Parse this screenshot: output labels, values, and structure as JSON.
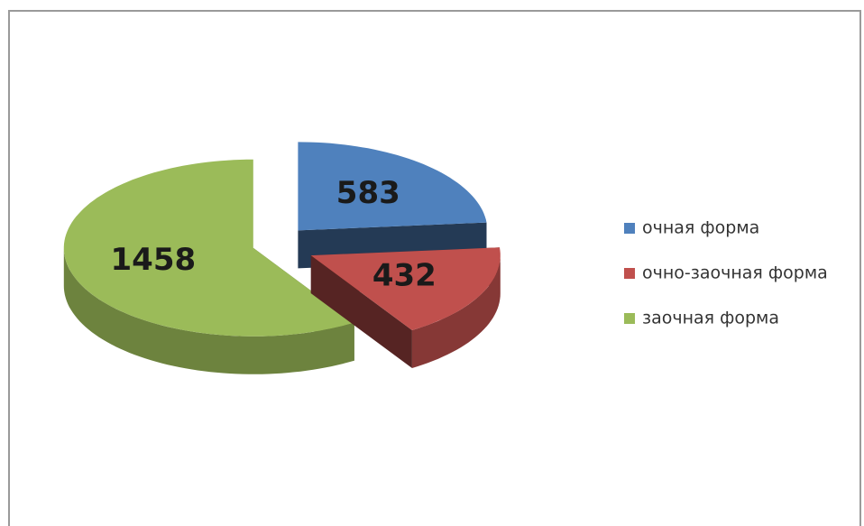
{
  "chart_data": {
    "type": "pie3d",
    "categories": [
      "очная форма",
      "очно-заочная форма",
      "заочная форма"
    ],
    "values": [
      583,
      432,
      1458
    ],
    "colors": [
      "#4f81bd",
      "#c0504d",
      "#9bbb59"
    ],
    "legend": "right"
  }
}
